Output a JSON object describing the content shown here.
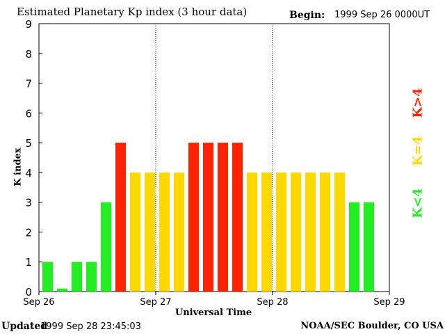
{
  "header": {
    "title": "Estimated Planetary Kp index (3 hour data)",
    "begin_label": "Begin:",
    "begin_value": "1999 Sep 26 0000UT"
  },
  "footer": {
    "updated_label": "Updated",
    "updated_value": "1999 Sep 28 23:45:03",
    "credit": "NOAA/SEC Boulder, CO USA"
  },
  "legend": {
    "high": "K>4",
    "equal": "K=4",
    "low": "K<4"
  },
  "colors": {
    "low": "#22ee22",
    "equal": "#ffd800",
    "high": "#ff2200",
    "axis": "#000000"
  },
  "chart_data": {
    "type": "bar",
    "title": "Estimated Planetary Kp index (3 hour data)",
    "xlabel": "Universal Time",
    "ylabel": "K index",
    "ylim": [
      0,
      9
    ],
    "yticks": [
      "0",
      "1",
      "2",
      "3",
      "4",
      "5",
      "6",
      "7",
      "8",
      "9"
    ],
    "xticks": [
      "Sep 26",
      "Sep 27",
      "Sep 28",
      "Sep 29"
    ],
    "day_separators": [
      "Sep 27",
      "Sep 28"
    ],
    "bin_hours": 3,
    "values": [
      1,
      0.1,
      1,
      1,
      3,
      5,
      4,
      4,
      4,
      4,
      5,
      5,
      5,
      5,
      4,
      4,
      4,
      4,
      4,
      4,
      4,
      3,
      3
    ]
  }
}
